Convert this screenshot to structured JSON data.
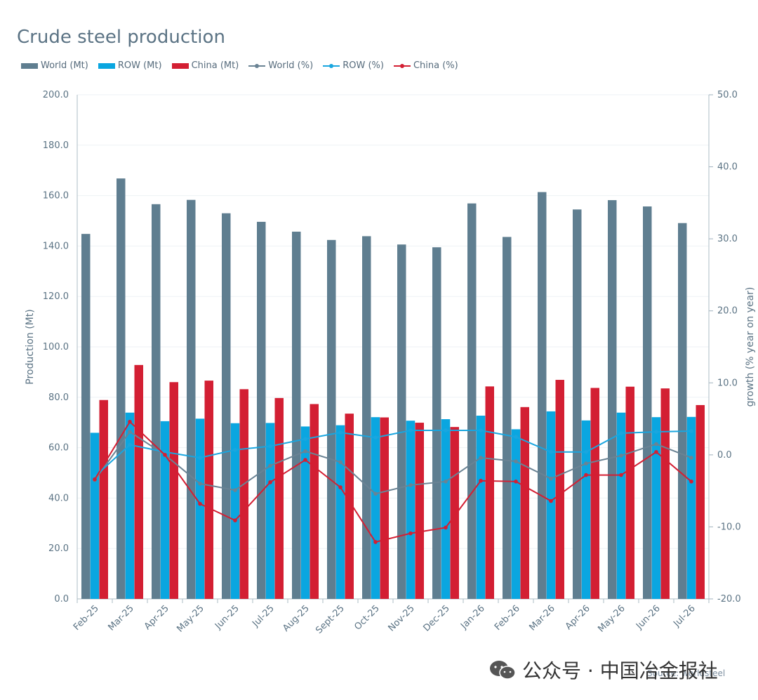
{
  "chart_data": {
    "type": "bar",
    "title": "Crude steel production",
    "categories": [
      "Feb-25",
      "Mar-25",
      "Apr-25",
      "May-25",
      "Jun-25",
      "Jul-25",
      "Aug-25",
      "Sept-25",
      "Oct-25",
      "Nov-25",
      "Dec-25",
      "Jan-26",
      "Feb-26",
      "Mar-26",
      "Apr-26",
      "May-26",
      "Jun-26",
      "Jul-26"
    ],
    "ylabel": "Production (Mt)",
    "y2label": "growth (% year on year)",
    "ylim": [
      0,
      200
    ],
    "y2lim": [
      -20,
      50
    ],
    "yticks": [
      "0.0",
      "20.0",
      "40.0",
      "60.0",
      "80.0",
      "100.0",
      "120.0",
      "140.0",
      "160.0",
      "180.0",
      "200.0"
    ],
    "y2ticks": [
      "-20.0",
      "-10.0",
      "0.0",
      "10.0",
      "20.0",
      "30.0",
      "40.0",
      "50.0"
    ],
    "grid": true,
    "legend_position": "top-left",
    "bar_series": [
      {
        "name": "World (Mt)",
        "color": "#5f7e90",
        "values": [
          144.8,
          166.8,
          156.6,
          158.3,
          153.0,
          149.6,
          145.7,
          142.4,
          143.9,
          140.6,
          139.5,
          156.9,
          143.6,
          161.4,
          154.5,
          158.2,
          155.7,
          149.1
        ]
      },
      {
        "name": "ROW (Mt)",
        "color": "#0aa6e0",
        "values": [
          65.9,
          73.9,
          70.5,
          71.5,
          69.7,
          69.8,
          68.4,
          68.9,
          72.1,
          70.7,
          71.3,
          72.7,
          67.3,
          74.4,
          70.8,
          73.9,
          72.1,
          72.2
        ]
      },
      {
        "name": "China (Mt)",
        "color": "#d31f33",
        "values": [
          78.9,
          92.8,
          86.0,
          86.6,
          83.2,
          79.7,
          77.3,
          73.5,
          72.0,
          69.9,
          68.2,
          84.3,
          76.1,
          86.9,
          83.7,
          84.2,
          83.5,
          76.9
        ]
      }
    ],
    "line_series": [
      {
        "name": "World (%)",
        "color": "#6a8394",
        "values": [
          -3.5,
          3.2,
          0.0,
          -4.0,
          -4.9,
          -1.5,
          0.5,
          -1.0,
          -5.4,
          -4.2,
          -3.7,
          -0.4,
          -0.9,
          -3.3,
          -1.2,
          -0.1,
          1.5,
          -0.4
        ]
      },
      {
        "name": "ROW (%)",
        "color": "#1aa6df",
        "values": [
          -3.0,
          1.4,
          0.4,
          -0.4,
          0.7,
          1.2,
          2.2,
          3.1,
          2.4,
          3.4,
          3.4,
          3.4,
          2.5,
          0.4,
          0.4,
          3.0,
          3.2,
          3.3
        ]
      },
      {
        "name": "China (%)",
        "color": "#d31f33",
        "values": [
          -3.4,
          4.6,
          0.0,
          -6.8,
          -9.1,
          -3.8,
          -0.7,
          -4.5,
          -12.1,
          -10.9,
          -10.1,
          -3.6,
          -3.7,
          -6.4,
          -2.8,
          -2.8,
          0.4,
          -3.7
        ]
      }
    ]
  },
  "watermark": {
    "text": "公众号 · 中国冶金报社",
    "icon": "wechat-icon"
  },
  "source": {
    "text": "Source: worldsteel"
  }
}
